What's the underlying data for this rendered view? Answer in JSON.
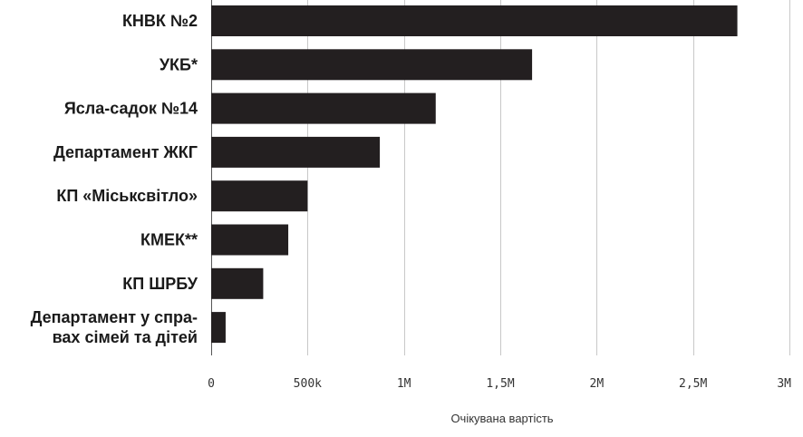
{
  "chart_data": {
    "type": "bar",
    "orientation": "horizontal",
    "title": "",
    "xlabel": "Очікувана вартість",
    "ylabel": "",
    "xlim": [
      0,
      3000000
    ],
    "grid": true,
    "categories": [
      [
        "КНВК №2"
      ],
      [
        "УКБ*"
      ],
      [
        "Ясла-садок №14"
      ],
      [
        "Департамент ЖКГ"
      ],
      [
        "КП «Міськсвітло»"
      ],
      [
        "КМЕК**"
      ],
      [
        "КП ШРБУ"
      ],
      [
        "Департамент у спра-",
        "вах сімей та дітей"
      ]
    ],
    "values": [
      2730000,
      1665000,
      1165000,
      875000,
      500000,
      400000,
      270000,
      75000
    ],
    "ticks": [
      0,
      500000,
      1000000,
      1500000,
      2000000,
      2500000,
      3000000
    ],
    "tick_labels": [
      "0",
      "500k",
      "1M",
      "1,5M",
      "2M",
      "2,5M",
      "3M"
    ],
    "bar_color": "#231f20"
  }
}
